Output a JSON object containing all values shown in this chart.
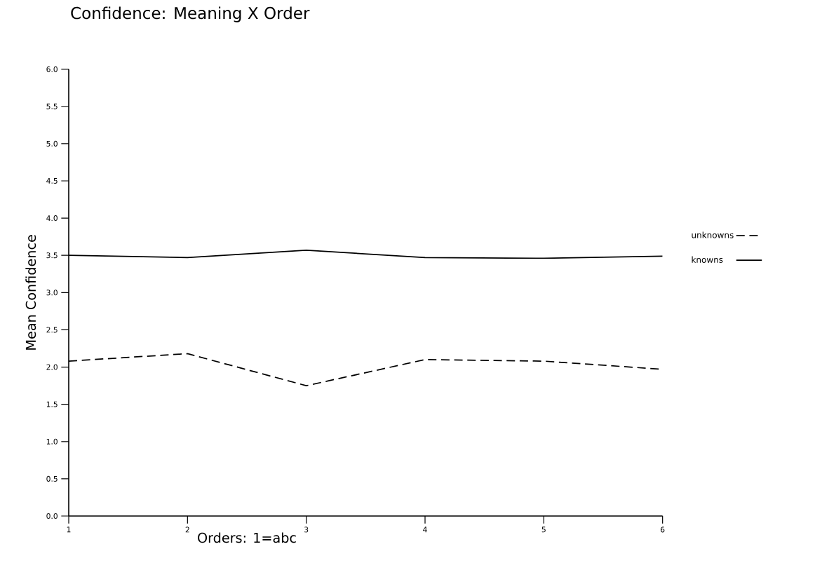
{
  "chart_data": {
    "type": "line",
    "title": "Confidence: Meaning X Order",
    "xlabel": "Orders: 1=abc",
    "ylabel": "Mean Confidence",
    "x": [
      1,
      2,
      3,
      4,
      5,
      6
    ],
    "series": [
      {
        "name": "unknowns",
        "color": "#000000",
        "line_style": "dashed",
        "values": [
          2.08,
          2.18,
          1.75,
          2.1,
          2.08,
          1.97
        ]
      },
      {
        "name": "knowns",
        "color": "#000000",
        "line_style": "solid",
        "values": [
          3.5,
          3.47,
          3.57,
          3.47,
          3.46,
          3.49
        ]
      }
    ],
    "xlim": [
      1,
      6
    ],
    "xticks": [
      1,
      2,
      3,
      4,
      5,
      6
    ],
    "ylim": [
      0,
      6
    ],
    "yticks": [
      {
        "value": 0,
        "label": "0.0"
      },
      {
        "value": 0.5,
        "label": "0.5"
      },
      {
        "value": 1,
        "label": "1.0"
      },
      {
        "value": 1.5,
        "label": "1.5"
      },
      {
        "value": 2,
        "label": "2.0"
      },
      {
        "value": 2.5,
        "label": "2.5"
      },
      {
        "value": 3,
        "label": "3.0"
      },
      {
        "value": 3.5,
        "label": "3.5"
      },
      {
        "value": 4,
        "label": "4.0"
      },
      {
        "value": 4.5,
        "label": "4.5"
      },
      {
        "value": 5,
        "label": "5.0"
      },
      {
        "value": 5.5,
        "label": "5.5"
      },
      {
        "value": 6,
        "label": "6.0"
      }
    ],
    "grid": false,
    "legend": "right",
    "marker": "none"
  }
}
